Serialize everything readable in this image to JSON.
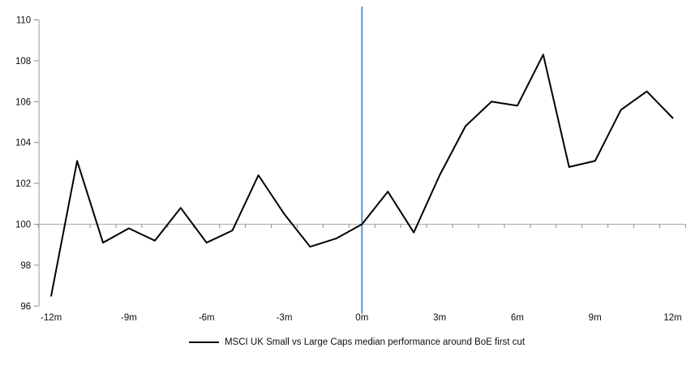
{
  "chart_data": {
    "type": "line",
    "title": "",
    "xlabel": "",
    "ylabel": "",
    "x": [
      -12,
      -11,
      -10,
      -9,
      -8,
      -7,
      -6,
      -5,
      -4,
      -3,
      -2,
      -1,
      0,
      1,
      2,
      3,
      4,
      5,
      6,
      7,
      8,
      9,
      10,
      11,
      12
    ],
    "series": [
      {
        "name": "MSCI UK Small vs Large Caps median performance around BoE first cut",
        "values": [
          96.5,
          103.1,
          99.1,
          99.8,
          99.2,
          100.8,
          99.1,
          99.7,
          102.4,
          100.5,
          98.9,
          99.3,
          100.0,
          101.6,
          99.6,
          102.4,
          104.8,
          106.0,
          105.8,
          108.3,
          102.8,
          103.1,
          105.6,
          106.5,
          105.2
        ]
      }
    ],
    "ylim": [
      96,
      110
    ],
    "xlim": [
      -12.5,
      12.5
    ],
    "y_ticks": [
      96,
      98,
      100,
      102,
      104,
      106,
      108,
      110
    ],
    "x_axis_labels": [
      "-12m",
      "-9m",
      "-6m",
      "-3m",
      "0m",
      "3m",
      "6m",
      "9m",
      "12m"
    ],
    "x_label_months": [
      -12,
      -9,
      -6,
      -3,
      0,
      3,
      6,
      9,
      12
    ],
    "axis_cross_value": 100,
    "event_line_x": 0,
    "grid": false,
    "legend_position": "bottom",
    "colors": {
      "series": "#000000",
      "event_line": "#4D8AC6",
      "axis_line": "#B3B3B3",
      "tick": "#8C8C8C",
      "label": "#0d0d0d"
    }
  }
}
